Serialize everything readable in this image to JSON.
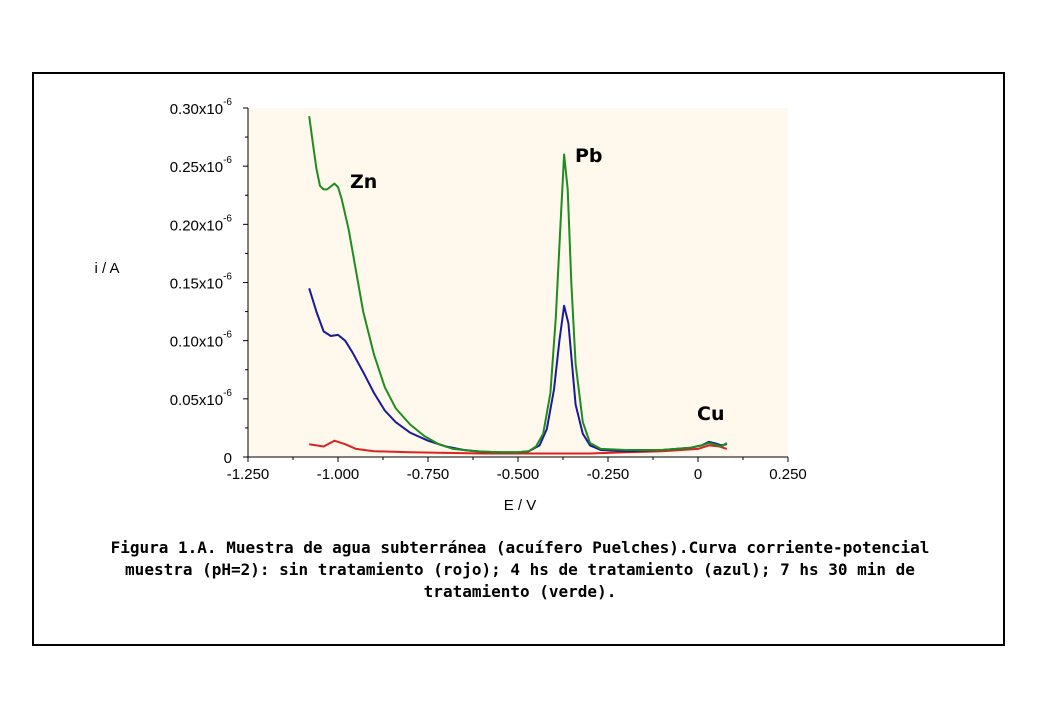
{
  "chart_data": {
    "type": "line",
    "title": "",
    "xlabel": "E / V",
    "ylabel": "i / A",
    "xlim": [
      -1.25,
      0.25
    ],
    "ylim": [
      0,
      3e-07
    ],
    "x_ticks": [
      "-1.250",
      "-1.000",
      "-0.750",
      "-0.500",
      "-0.250",
      "0",
      "0.250"
    ],
    "y_ticks": [
      {
        "base": "0.30x10",
        "exp": "-6"
      },
      {
        "base": "0.25x10",
        "exp": "-6"
      },
      {
        "base": "0.20x10",
        "exp": "-6"
      },
      {
        "base": "0.15x10",
        "exp": "-6"
      },
      {
        "base": "0.10x10",
        "exp": "-6"
      },
      {
        "base": "0.05x10",
        "exp": "-6"
      },
      {
        "base": "0",
        "exp": ""
      }
    ],
    "grid": false,
    "plot_background": "#fff8ec",
    "annotations": [
      {
        "text": "Zn",
        "x": -0.97,
        "y": 2.4e-07
      },
      {
        "text": "Pb",
        "x": -0.36,
        "y": 2.6e-07
      },
      {
        "text": "Cu",
        "x": 0.01,
        "y": 3.4e-08
      }
    ],
    "series": [
      {
        "color": "#dd2222",
        "points": [
          [
            -1.08,
            1.1e-08
          ],
          [
            -1.04,
            9e-09
          ],
          [
            -1.01,
            1.4e-08
          ],
          [
            -0.98,
            1.1e-08
          ],
          [
            -0.95,
            7e-09
          ],
          [
            -0.9,
            5e-09
          ],
          [
            -0.8,
            4e-09
          ],
          [
            -0.7,
            3.5e-09
          ],
          [
            -0.6,
            3e-09
          ],
          [
            -0.5,
            3e-09
          ],
          [
            -0.4,
            3e-09
          ],
          [
            -0.3,
            3e-09
          ],
          [
            -0.2,
            4e-09
          ],
          [
            -0.1,
            5e-09
          ],
          [
            0.0,
            7e-09
          ],
          [
            0.03,
            1e-08
          ],
          [
            0.06,
            9e-09
          ],
          [
            0.08,
            7e-09
          ]
        ]
      },
      {
        "color": "#1a1a99",
        "points": [
          [
            -1.08,
            1.45e-07
          ],
          [
            -1.06,
            1.25e-07
          ],
          [
            -1.04,
            1.08e-07
          ],
          [
            -1.02,
            1.04e-07
          ],
          [
            -1.0,
            1.05e-07
          ],
          [
            -0.98,
            1e-07
          ],
          [
            -0.96,
            9e-08
          ],
          [
            -0.93,
            7.3e-08
          ],
          [
            -0.9,
            5.5e-08
          ],
          [
            -0.87,
            4e-08
          ],
          [
            -0.84,
            3e-08
          ],
          [
            -0.8,
            2.1e-08
          ],
          [
            -0.75,
            1.4e-08
          ],
          [
            -0.7,
            9e-09
          ],
          [
            -0.65,
            6e-09
          ],
          [
            -0.6,
            4.5e-09
          ],
          [
            -0.55,
            4e-09
          ],
          [
            -0.5,
            4e-09
          ],
          [
            -0.47,
            5e-09
          ],
          [
            -0.44,
            1e-08
          ],
          [
            -0.42,
            2.4e-08
          ],
          [
            -0.4,
            5.8e-08
          ],
          [
            -0.385,
            1e-07
          ],
          [
            -0.372,
            1.3e-07
          ],
          [
            -0.36,
            1.15e-07
          ],
          [
            -0.35,
            8e-08
          ],
          [
            -0.34,
            4.5e-08
          ],
          [
            -0.32,
            2e-08
          ],
          [
            -0.3,
            1e-08
          ],
          [
            -0.27,
            6e-09
          ],
          [
            -0.2,
            5e-09
          ],
          [
            -0.1,
            6e-09
          ],
          [
            -0.02,
            8e-09
          ],
          [
            0.01,
            1e-08
          ],
          [
            0.03,
            1.3e-08
          ],
          [
            0.05,
            1.15e-08
          ],
          [
            0.065,
            1e-08
          ],
          [
            0.08,
            1.1e-08
          ]
        ]
      },
      {
        "color": "#1e8c1e",
        "points": [
          [
            -1.08,
            2.93e-07
          ],
          [
            -1.07,
            2.7e-07
          ],
          [
            -1.06,
            2.48e-07
          ],
          [
            -1.05,
            2.33e-07
          ],
          [
            -1.04,
            2.3e-07
          ],
          [
            -1.03,
            2.3e-07
          ],
          [
            -1.01,
            2.35e-07
          ],
          [
            -1.0,
            2.32e-07
          ],
          [
            -0.99,
            2.22e-07
          ],
          [
            -0.97,
            1.95e-07
          ],
          [
            -0.95,
            1.6e-07
          ],
          [
            -0.93,
            1.25e-07
          ],
          [
            -0.9,
            8.8e-08
          ],
          [
            -0.87,
            6e-08
          ],
          [
            -0.84,
            4.2e-08
          ],
          [
            -0.8,
            2.8e-08
          ],
          [
            -0.76,
            1.8e-08
          ],
          [
            -0.72,
            1.1e-08
          ],
          [
            -0.68,
            7e-09
          ],
          [
            -0.62,
            5e-09
          ],
          [
            -0.55,
            4e-09
          ],
          [
            -0.5,
            4e-09
          ],
          [
            -0.47,
            5e-09
          ],
          [
            -0.45,
            9e-09
          ],
          [
            -0.43,
            2e-08
          ],
          [
            -0.41,
            5.5e-08
          ],
          [
            -0.395,
            1.2e-07
          ],
          [
            -0.382,
            2e-07
          ],
          [
            -0.372,
            2.6e-07
          ],
          [
            -0.362,
            2.3e-07
          ],
          [
            -0.352,
            1.5e-07
          ],
          [
            -0.34,
            8e-08
          ],
          [
            -0.32,
            3e-08
          ],
          [
            -0.3,
            1.2e-08
          ],
          [
            -0.27,
            7e-09
          ],
          [
            -0.2,
            6e-09
          ],
          [
            -0.1,
            6e-09
          ],
          [
            -0.02,
            8e-09
          ],
          [
            0.01,
            1e-08
          ],
          [
            0.03,
            1.2e-08
          ],
          [
            0.05,
            1.05e-08
          ],
          [
            0.065,
            9e-09
          ],
          [
            0.08,
            1.2e-08
          ]
        ]
      }
    ]
  },
  "caption": {
    "line1": "Figura 1.A. Muestra de agua subterránea (acuífero Puelches).Curva corriente-potencial",
    "line2": "muestra (pH=2): sin tratamiento (rojo); 4 hs de tratamiento (azul); 7 hs 30 min de",
    "line3": "tratamiento (verde)."
  }
}
